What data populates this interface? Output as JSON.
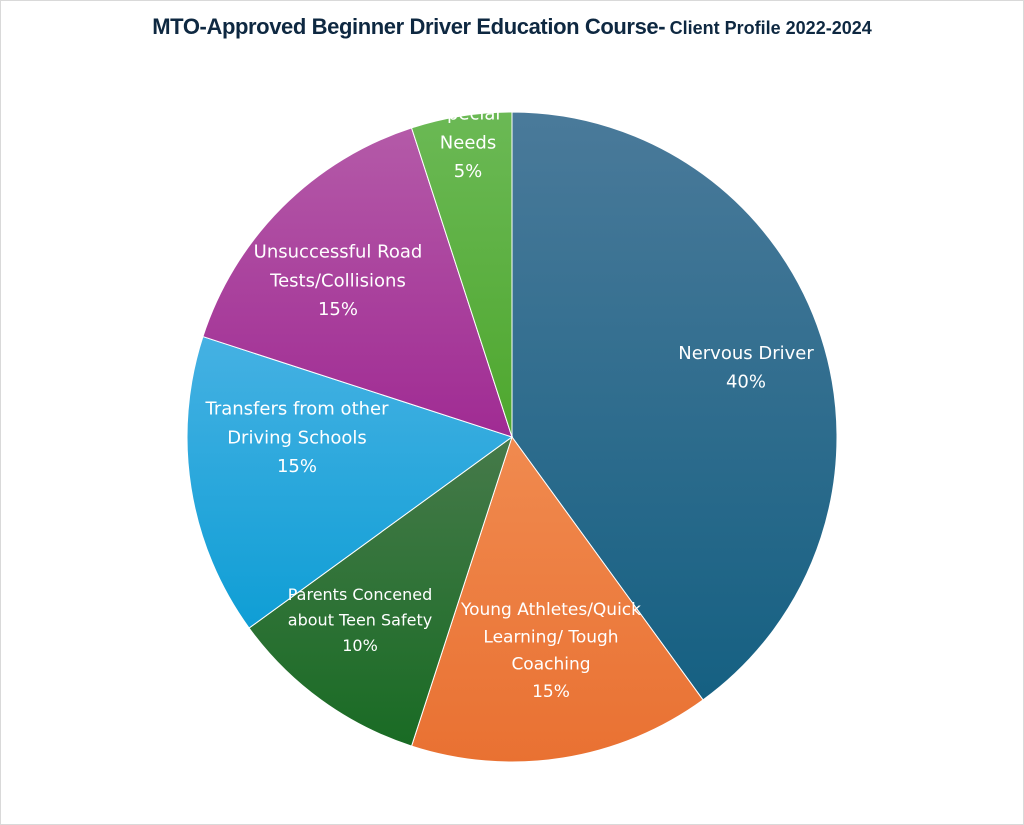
{
  "chart_data": {
    "type": "pie",
    "title": "MTO-Approved Beginner Driver Education Course-",
    "subtitle": "Client Profile 2022-2024",
    "start_angle_deg": 0,
    "direction": "clockwise",
    "slices": [
      {
        "label_lines": [
          "Nervous Driver"
        ],
        "value": 40,
        "value_label": "40%",
        "color": "#156082",
        "color_light": "#4a7a9a"
      },
      {
        "label_lines": [
          "Young Athletes/Quick",
          "Learning/ Tough",
          "Coaching"
        ],
        "value": 15,
        "value_label": "15%",
        "color": "#e97132",
        "color_light": "#f08a4f"
      },
      {
        "label_lines": [
          "Parents Concened",
          "about Teen Safety"
        ],
        "value": 10,
        "value_label": "10%",
        "color": "#196b24",
        "color_light": "#467a4a"
      },
      {
        "label_lines": [
          "Transfers from other",
          "Driving Schools"
        ],
        "value": 15,
        "value_label": "15%",
        "color": "#0f9ed5",
        "color_light": "#45b1e3"
      },
      {
        "label_lines": [
          "Unsuccessful Road",
          "Tests/Collisions"
        ],
        "value": 15,
        "value_label": "15%",
        "color": "#a02b93",
        "color_light": "#b45aa8"
      },
      {
        "label_lines": [
          "Special",
          "Needs"
        ],
        "value": 5,
        "value_label": "5%",
        "color": "#4ea72e",
        "color_light": "#6bb955"
      }
    ]
  }
}
